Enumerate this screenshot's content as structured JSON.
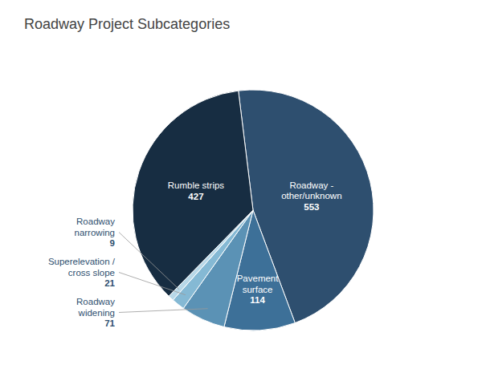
{
  "chart_data": {
    "type": "pie",
    "title": "Roadway Project Subcategories",
    "categories": [
      "Roadway -\nother/unknown",
      "Pavement\nsurface",
      "Roadway\nwidening",
      "Superelevation /\ncross slope",
      "Roadway\nnarrowing",
      "Rumble strips"
    ],
    "values": [
      553,
      114,
      71,
      21,
      9,
      427
    ],
    "colors": [
      "#2e4f6f",
      "#3d7098",
      "#5b92b5",
      "#85b9d4",
      "#b8d8e8",
      "#172d42"
    ],
    "data_labels": true
  }
}
